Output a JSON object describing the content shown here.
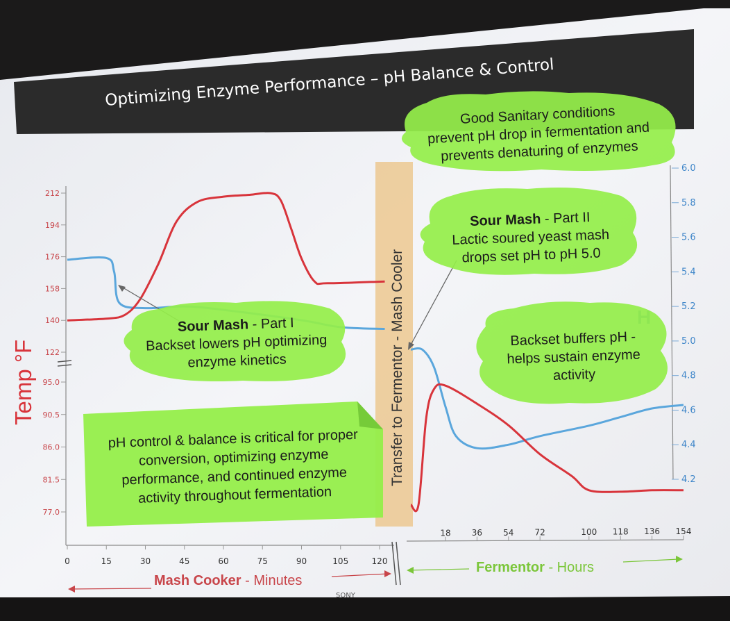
{
  "slide": {
    "title": "Optimizing Enzyme Performance – pH Balance & Control",
    "bezel_brand": "SONY"
  },
  "colors": {
    "temperature": "#d8343b",
    "ph": "#5aa6dc",
    "callout_green": "#95ee4a",
    "transfer_band": "#ecc891",
    "header_bar": "#2b2b2b"
  },
  "callouts": {
    "sanitary": {
      "lines": [
        "Good Sanitary conditions",
        "prevent pH drop in fermentation and",
        "prevents denaturing of enzymes"
      ]
    },
    "sour_mash_2": {
      "bold": "Sour Mash",
      "rest": " - Part II",
      "lines": [
        "Lactic soured yeast mash",
        "drops set pH to pH 5.0"
      ]
    },
    "sour_mash_1": {
      "bold": "Sour Mash",
      "rest": " - Part I",
      "lines": [
        "Backset lowers pH optimizing",
        "enzyme kinetics"
      ]
    },
    "backset": {
      "lines": [
        "Backset buffers pH -",
        "helps sustain enzyme",
        "activity"
      ]
    },
    "ph_control": {
      "lines": [
        "pH control & balance is critical for proper",
        "conversion, optimizing enzyme",
        "performance, and continued enzyme",
        "activity throughout fermentation"
      ]
    }
  },
  "transfer_label": "Transfer to Fermentor  -  Mash Cooler",
  "chart_data": {
    "type": "line",
    "y_left_label": "Temp °F",
    "y_left_ticks_upper": [
      212,
      194,
      176,
      158,
      140,
      122
    ],
    "y_left_ticks_lower": [
      95.0,
      90.5,
      86.0,
      81.5,
      77.0
    ],
    "y_right_ticks": [
      6.0,
      5.8,
      5.6,
      5.4,
      5.2,
      5.0,
      4.8,
      4.6,
      4.4,
      4.2
    ],
    "y_right_range": [
      4.2,
      6.0
    ],
    "x_left": {
      "name_bold": "Mash Cooker",
      "name_rest": " - Minutes",
      "ticks": [
        0,
        15,
        30,
        45,
        60,
        75,
        90,
        105,
        120
      ]
    },
    "x_right": {
      "name_bold": "Fermentor",
      "name_rest": " - Hours",
      "ticks": [
        18,
        36,
        54,
        72,
        100,
        118,
        136,
        154
      ]
    },
    "series": [
      {
        "key": "temperature",
        "cooker": [
          [
            0,
            140
          ],
          [
            15,
            141
          ],
          [
            22,
            143
          ],
          [
            28,
            152
          ],
          [
            35,
            172
          ],
          [
            42,
            196
          ],
          [
            50,
            207
          ],
          [
            60,
            210
          ],
          [
            70,
            211
          ],
          [
            78,
            212
          ],
          [
            82,
            208
          ],
          [
            86,
            192
          ],
          [
            90,
            175
          ],
          [
            95,
            162
          ],
          [
            100,
            161
          ],
          [
            122,
            162
          ]
        ],
        "fermentor": [
          [
            0,
            78
          ],
          [
            4,
            78
          ],
          [
            8,
            90
          ],
          [
            12,
            94
          ],
          [
            18,
            94.5
          ],
          [
            36,
            92
          ],
          [
            54,
            89
          ],
          [
            72,
            85
          ],
          [
            90,
            82
          ],
          [
            100,
            80
          ],
          [
            118,
            79.8
          ],
          [
            136,
            80
          ],
          [
            154,
            80
          ]
        ]
      },
      {
        "key": "ph",
        "cooker": [
          [
            0,
            5.47
          ],
          [
            15,
            5.48
          ],
          [
            18,
            5.4
          ],
          [
            20,
            5.22
          ],
          [
            30,
            5.19
          ],
          [
            45,
            5.2
          ],
          [
            60,
            5.18
          ],
          [
            90,
            5.12
          ],
          [
            105,
            5.08
          ],
          [
            122,
            5.07
          ]
        ],
        "fermentor": [
          [
            0,
            4.95
          ],
          [
            6,
            4.95
          ],
          [
            12,
            4.85
          ],
          [
            18,
            4.62
          ],
          [
            24,
            4.45
          ],
          [
            36,
            4.38
          ],
          [
            54,
            4.4
          ],
          [
            72,
            4.45
          ],
          [
            100,
            4.51
          ],
          [
            118,
            4.56
          ],
          [
            136,
            4.61
          ],
          [
            154,
            4.63
          ]
        ]
      }
    ]
  }
}
